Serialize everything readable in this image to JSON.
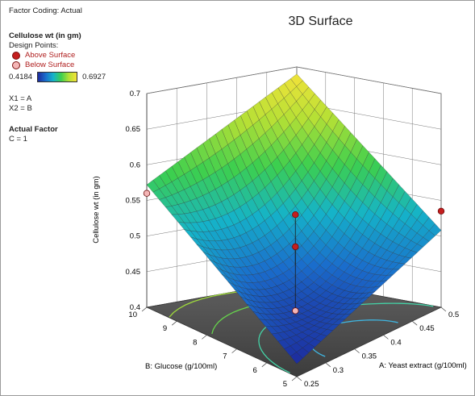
{
  "factor_coding": "Factor Coding: Actual",
  "response_name": "Cellulose wt (in gm)",
  "design_points_label": "Design Points:",
  "legend": {
    "above": "Above Surface",
    "below": "Below Surface",
    "above_color": "#c41e1e",
    "below_color": "#f4b6b6",
    "min": "0.4184",
    "max": "0.6927"
  },
  "x1_def": "X1 = A",
  "x2_def": "X2 = B",
  "actual_factor_heading": "Actual Factor",
  "actual_factor_value": "C = 1",
  "chart_data": {
    "type": "surface",
    "title": "3D Surface",
    "zlabel": "Cellulose wt (in gm)",
    "xlabel": "A: Yeast extract (g/100ml)",
    "ylabel": "B: Glucose (g/100ml)",
    "x_ticks": [
      "0.25",
      "0.3",
      "0.35",
      "0.4",
      "0.45",
      "0.5"
    ],
    "y_ticks": [
      "5",
      "6",
      "7",
      "8",
      "9",
      "10"
    ],
    "z_ticks": [
      "0.4",
      "0.45",
      "0.5",
      "0.55",
      "0.6",
      "0.65",
      "0.7"
    ],
    "xlim": [
      0.25,
      0.5
    ],
    "ylim": [
      5,
      10
    ],
    "zlim": [
      0.4,
      0.7
    ],
    "surface_corners": [
      {
        "A": 0.25,
        "B": 5,
        "z": 0.418
      },
      {
        "A": 0.5,
        "B": 5,
        "z": 0.508
      },
      {
        "A": 0.25,
        "B": 10,
        "z": 0.572
      },
      {
        "A": 0.5,
        "B": 10,
        "z": 0.69
      }
    ],
    "surface_center": {
      "A": 0.375,
      "B": 7.5,
      "z": 0.475
    },
    "design_points": [
      {
        "A": 0.375,
        "B": 7.5,
        "z": 0.545,
        "position": "above"
      },
      {
        "A": 0.375,
        "B": 7.5,
        "z": 0.5,
        "position": "above"
      },
      {
        "A": 0.375,
        "B": 7.5,
        "z": 0.41,
        "position": "below"
      },
      {
        "A": 0.5,
        "B": 5,
        "z": 0.535,
        "position": "above"
      },
      {
        "A": 0.25,
        "B": 10,
        "z": 0.56,
        "position": "below"
      }
    ],
    "color_range": [
      0.4184,
      0.6927
    ],
    "grid": true
  }
}
